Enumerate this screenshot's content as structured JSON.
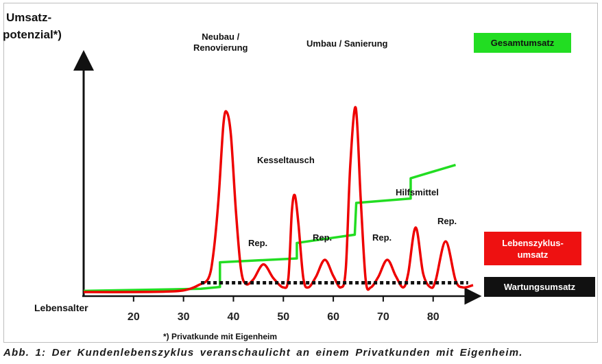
{
  "chart_data": {
    "type": "line",
    "ylabel_line1": "Umsatz-",
    "ylabel_line2": "potenzial*)",
    "xlabel": "Lebensalter",
    "x_ticks": [
      20,
      30,
      40,
      50,
      60,
      70,
      80
    ],
    "xlim": [
      10,
      88
    ],
    "footnote": "*) Privatkunde mit Eigenheim",
    "series": [
      {
        "name": "Gesamtumsatz",
        "color": "#22dd22",
        "x": [
          10,
          33.5,
          37.3,
          37.3,
          52.7,
          52.7,
          64.3,
          64.6,
          75.5,
          75.5,
          84.5
        ],
        "y": [
          0.5,
          1.4,
          2.2,
          12.9,
          14.6,
          21.3,
          24.9,
          38.7,
          40.6,
          49.4,
          55.2
        ]
      },
      {
        "name": "Lebenszyklus-umsatz",
        "color": "#ee0000",
        "x": [
          10,
          20,
          28,
          31,
          33,
          35,
          36,
          37,
          38,
          38.7,
          39.5,
          40.5,
          41.5,
          42.5,
          44,
          46,
          48,
          50,
          51,
          51.7,
          52.3,
          53,
          54,
          55,
          56.5,
          58.3,
          60,
          61.5,
          62.5,
          63.4,
          64.5,
          65.5,
          66.5,
          67.5,
          69,
          70.8,
          72.5,
          74,
          75,
          76.5,
          78,
          79.5,
          80.5,
          82.5,
          84.5,
          86,
          88
        ],
        "y": [
          0,
          0,
          0.3,
          1.2,
          3,
          6,
          17,
          40,
          73,
          78,
          68,
          35,
          10,
          3.5,
          5.5,
          12,
          6,
          2,
          6,
          35,
          42,
          30,
          6,
          2,
          6.5,
          14,
          7,
          2,
          10,
          55,
          80,
          40,
          5,
          2,
          6.5,
          14,
          7,
          2,
          8,
          28,
          8,
          2,
          5,
          22,
          5,
          2,
          3
        ]
      },
      {
        "name": "Wartungsumsatz",
        "color": "#111111",
        "x": [
          33.5,
          87
        ],
        "y": [
          4,
          4
        ]
      }
    ],
    "annotations": [
      {
        "text_line1": "Neubau /",
        "text_line2": "Renovierung"
      },
      {
        "text": "Umbau / Sanierung"
      },
      {
        "text": "Kesseltausch"
      },
      {
        "text": "Hilfsmittel"
      },
      {
        "text": "Rep."
      },
      {
        "text": "Rep."
      },
      {
        "text": "Rep."
      },
      {
        "text": "Rep."
      }
    ],
    "legend": {
      "gesamt": {
        "label": "Gesamtumsatz",
        "bg": "#22dd22",
        "fg": "#111111"
      },
      "lebens": {
        "label_line1": "Lebenszyklus-",
        "label_line2": "umsatz",
        "bg": "#ee1111",
        "fg": "#ffffff"
      },
      "wartung": {
        "label": "Wartungsumsatz",
        "bg": "#111111",
        "fg": "#ffffff"
      }
    }
  },
  "caption": "Abb. 1: Der Kundenlebenszyklus veranschaulicht an einem Privatkunden mit Eigenheim."
}
